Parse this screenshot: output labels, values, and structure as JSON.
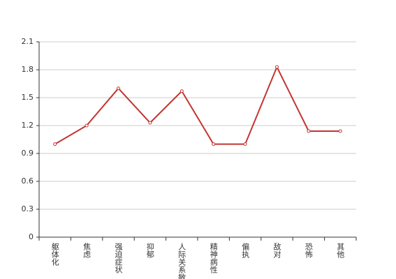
{
  "chart_data": {
    "type": "line",
    "categories": [
      "躯体化",
      "焦虑",
      "强迫症状",
      "抑郁",
      "人际关系敏感",
      "精神病性",
      "偏执",
      "敌对",
      "恐怖",
      "其他"
    ],
    "series": [
      {
        "color": "#c23531",
        "values": [
          1.0,
          1.2,
          1.6,
          1.23,
          1.57,
          1.0,
          1.0,
          1.83,
          1.14,
          1.14
        ]
      }
    ],
    "ylim": [
      0,
      2.1
    ],
    "yticks": [
      0,
      0.3,
      0.6,
      0.9,
      1.2,
      1.5,
      1.8,
      2.1
    ],
    "grid": true
  }
}
